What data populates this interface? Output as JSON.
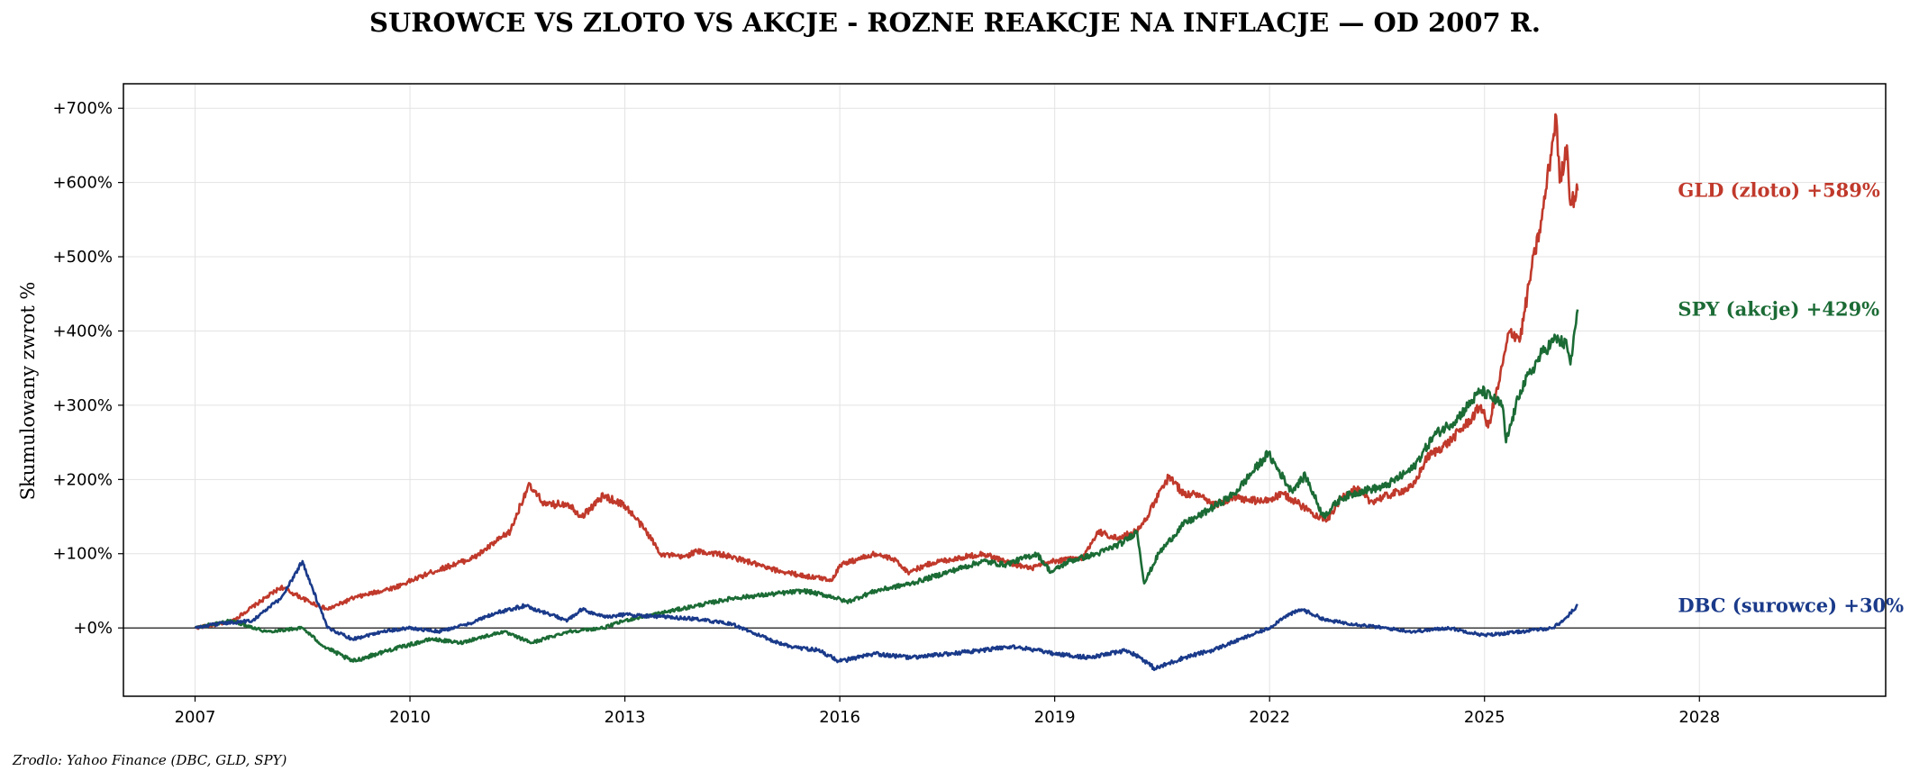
{
  "chart_data": {
    "type": "line",
    "title": "SUROWCE VS ZLOTO VS AKCJE - ROZNE REAKCJE NA INFLACJE — OD 2007 R.",
    "xlabel": "",
    "ylabel": "Skumulowany zwrot %",
    "xlim": [
      2006.0,
      2030.6
    ],
    "ylim": [
      -92,
      733
    ],
    "grid": true,
    "x_ticks": [
      2007,
      2010,
      2013,
      2016,
      2019,
      2022,
      2025,
      2028
    ],
    "x_tick_labels": [
      "2007",
      "2010",
      "2013",
      "2016",
      "2019",
      "2022",
      "2025",
      "2028"
    ],
    "y_ticks": [
      0,
      100,
      200,
      300,
      400,
      500,
      600,
      700
    ],
    "y_tick_labels": [
      "+0%",
      "+100%",
      "+200%",
      "+300%",
      "+400%",
      "+500%",
      "+600%",
      "+700%"
    ],
    "zero_line": true,
    "end_labels": [
      "GLD (zloto)  +589%",
      "SPY (akcje)  +429%",
      "DBC (surowce)  +30%"
    ],
    "source": "Zrodlo: Yahoo Finance (DBC, GLD, SPY)",
    "series": [
      {
        "name": "GLD (zloto)",
        "color": "#c0392b",
        "final": 589,
        "x": [
          2007.0,
          2007.5,
          2008.2,
          2008.6,
          2008.85,
          2009.2,
          2009.8,
          2010.3,
          2010.9,
          2011.4,
          2011.65,
          2011.9,
          2012.2,
          2012.4,
          2012.7,
          2013.0,
          2013.3,
          2013.5,
          2013.8,
          2014.0,
          2014.3,
          2014.7,
          2015.0,
          2015.5,
          2015.9,
          2016.0,
          2016.5,
          2016.8,
          2016.95,
          2017.3,
          2017.7,
          2018.0,
          2018.3,
          2018.65,
          2019.0,
          2019.4,
          2019.6,
          2019.9,
          2020.2,
          2020.6,
          2020.8,
          2021.0,
          2021.2,
          2021.5,
          2021.9,
          2022.2,
          2022.6,
          2022.8,
          2023.0,
          2023.2,
          2023.4,
          2023.7,
          2024.0,
          2024.2,
          2024.5,
          2024.8,
          2024.95,
          2025.05,
          2025.2,
          2025.35,
          2025.5,
          2025.65,
          2025.8,
          2025.9,
          2026.0,
          2026.05,
          2026.15,
          2026.2,
          2026.3
        ],
        "values": [
          0,
          8,
          55,
          35,
          25,
          40,
          55,
          75,
          95,
          130,
          192,
          165,
          168,
          150,
          178,
          165,
          130,
          100,
          95,
          103,
          100,
          90,
          80,
          70,
          65,
          85,
          100,
          90,
          75,
          88,
          95,
          100,
          90,
          80,
          90,
          95,
          130,
          120,
          135,
          205,
          180,
          180,
          165,
          175,
          170,
          180,
          155,
          145,
          175,
          188,
          170,
          180,
          190,
          230,
          250,
          280,
          300,
          270,
          330,
          400,
          390,
          480,
          550,
          620,
          690,
          600,
          650,
          570,
          589
        ]
      },
      {
        "name": "SPY (akcje)",
        "color": "#1b6b35",
        "final": 429,
        "x": [
          2007.0,
          2007.5,
          2008.0,
          2008.5,
          2008.8,
          2009.2,
          2009.7,
          2010.3,
          2010.7,
          2011.3,
          2011.7,
          2012.2,
          2012.7,
          2013.0,
          2013.5,
          2014.0,
          2014.5,
          2015.0,
          2015.5,
          2015.9,
          2016.1,
          2016.5,
          2017.0,
          2017.5,
          2018.0,
          2018.3,
          2018.75,
          2018.95,
          2019.2,
          2019.6,
          2019.95,
          2020.15,
          2020.25,
          2020.45,
          2020.8,
          2021.0,
          2021.5,
          2021.98,
          2022.3,
          2022.5,
          2022.75,
          2023.0,
          2023.3,
          2023.6,
          2024.0,
          2024.3,
          2024.6,
          2024.95,
          2025.25,
          2025.3,
          2025.5,
          2025.8,
          2026.0,
          2026.15,
          2026.2,
          2026.3
        ],
        "values": [
          0,
          10,
          -5,
          0,
          -25,
          -45,
          -30,
          -15,
          -20,
          -5,
          -20,
          -5,
          0,
          10,
          20,
          30,
          40,
          45,
          50,
          42,
          35,
          50,
          60,
          75,
          90,
          85,
          100,
          75,
          90,
          100,
          115,
          130,
          60,
          100,
          140,
          150,
          180,
          235,
          185,
          205,
          150,
          175,
          185,
          190,
          215,
          260,
          280,
          320,
          300,
          250,
          320,
          370,
          390,
          380,
          355,
          429
        ]
      },
      {
        "name": "DBC (surowce)",
        "color": "#1a3a8a",
        "final": 30,
        "x": [
          2007.0,
          2007.3,
          2007.8,
          2008.2,
          2008.5,
          2008.65,
          2008.85,
          2009.2,
          2009.6,
          2010.0,
          2010.4,
          2010.8,
          2011.2,
          2011.6,
          2011.9,
          2012.2,
          2012.4,
          2012.7,
          2013.0,
          2013.5,
          2014.0,
          2014.5,
          2015.0,
          2015.3,
          2015.7,
          2016.0,
          2016.5,
          2017.0,
          2017.5,
          2018.0,
          2018.4,
          2018.75,
          2019.0,
          2019.5,
          2020.0,
          2020.2,
          2020.4,
          2020.8,
          2021.2,
          2021.6,
          2022.0,
          2022.2,
          2022.45,
          2022.8,
          2023.2,
          2023.6,
          2024.0,
          2024.5,
          2025.0,
          2025.5,
          2025.95,
          2026.1,
          2026.2,
          2026.3
        ],
        "values": [
          0,
          5,
          10,
          40,
          90,
          50,
          0,
          -15,
          -5,
          0,
          -5,
          5,
          20,
          30,
          20,
          10,
          25,
          15,
          18,
          15,
          12,
          5,
          -15,
          -25,
          -30,
          -45,
          -35,
          -40,
          -35,
          -30,
          -25,
          -30,
          -35,
          -40,
          -30,
          -40,
          -55,
          -40,
          -30,
          -15,
          0,
          15,
          25,
          10,
          5,
          0,
          -5,
          0,
          -10,
          -5,
          0,
          10,
          20,
          30
        ]
      }
    ]
  }
}
